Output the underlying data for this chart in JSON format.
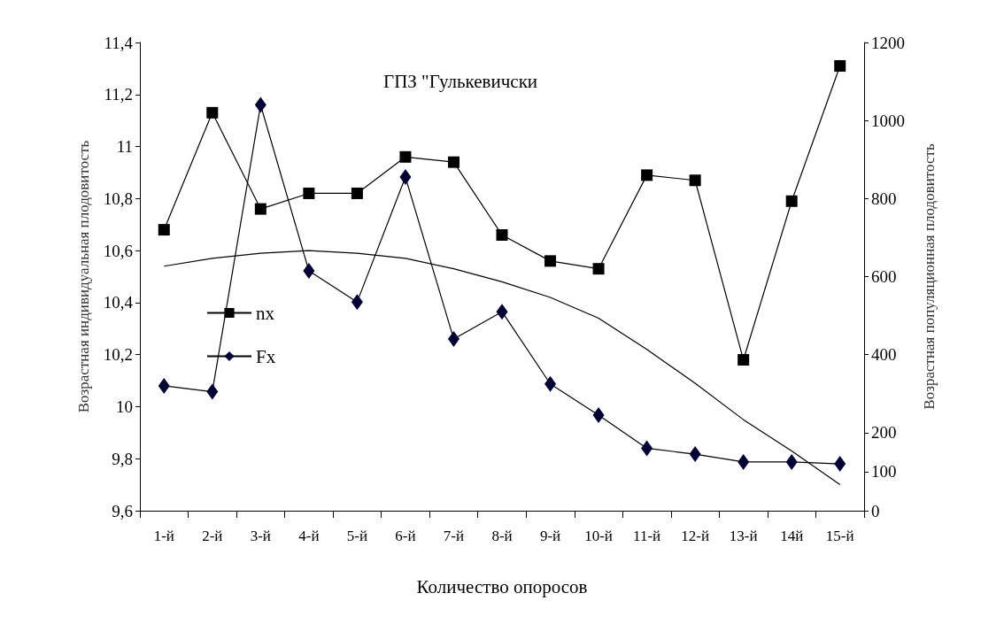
{
  "chart_data": {
    "type": "line",
    "title": "ГПЗ \"Гулькевичски",
    "xlabel": "Количество опоросов",
    "ylabel": "Возрастная индивидуальная плодовитость",
    "y2label": "Возрастная популяционная плодовитость",
    "categories": [
      "1-й",
      "2-й",
      "3-й",
      "4-й",
      "5-й",
      "6-й",
      "7-й",
      "8-й",
      "9-й",
      "10-й",
      "11-й",
      "12-й",
      "13-й",
      "14й",
      "15-й"
    ],
    "series": [
      {
        "name": "nx",
        "color": "#000000",
        "marker": "square",
        "values": [
          10.68,
          11.13,
          10.76,
          10.82,
          10.82,
          10.96,
          10.94,
          10.66,
          10.56,
          10.53,
          10.89,
          10.87,
          10.18,
          10.79,
          11.31
        ]
      },
      {
        "name": "Fx",
        "color": "#000033",
        "marker": "diamond",
        "axis": "y2",
        "values": [
          320,
          305,
          1040,
          615,
          535,
          855,
          440,
          510,
          325,
          245,
          160,
          145,
          125,
          125,
          120
        ]
      },
      {
        "color": "#000000",
        "marker": "none",
        "values": [
          10.54,
          10.57,
          10.59,
          10.6,
          10.59,
          10.57,
          10.53,
          10.48,
          10.42,
          10.34,
          10.22,
          10.09,
          9.95,
          9.83,
          9.7
        ]
      }
    ],
    "ylim": [
      9.6,
      11.4
    ],
    "yticks": [
      {
        "value": 9.6,
        "label": "9,6"
      },
      {
        "value": 9.8,
        "label": "9,8"
      },
      10,
      {
        "value": 10.2,
        "label": "10,2"
      },
      {
        "value": 10.4,
        "label": "10,4"
      },
      {
        "value": 10.6,
        "label": "10,6"
      },
      {
        "value": 10.8,
        "label": "10,8"
      },
      11,
      {
        "value": 11.2,
        "label": "11,2"
      },
      {
        "value": 11.4,
        "label": "11,4"
      }
    ],
    "y2lim": [
      0,
      1200
    ],
    "y2ticks": [
      0,
      100,
      200,
      400,
      600,
      800,
      1000,
      1200
    ],
    "grid": false,
    "legend": "left"
  }
}
